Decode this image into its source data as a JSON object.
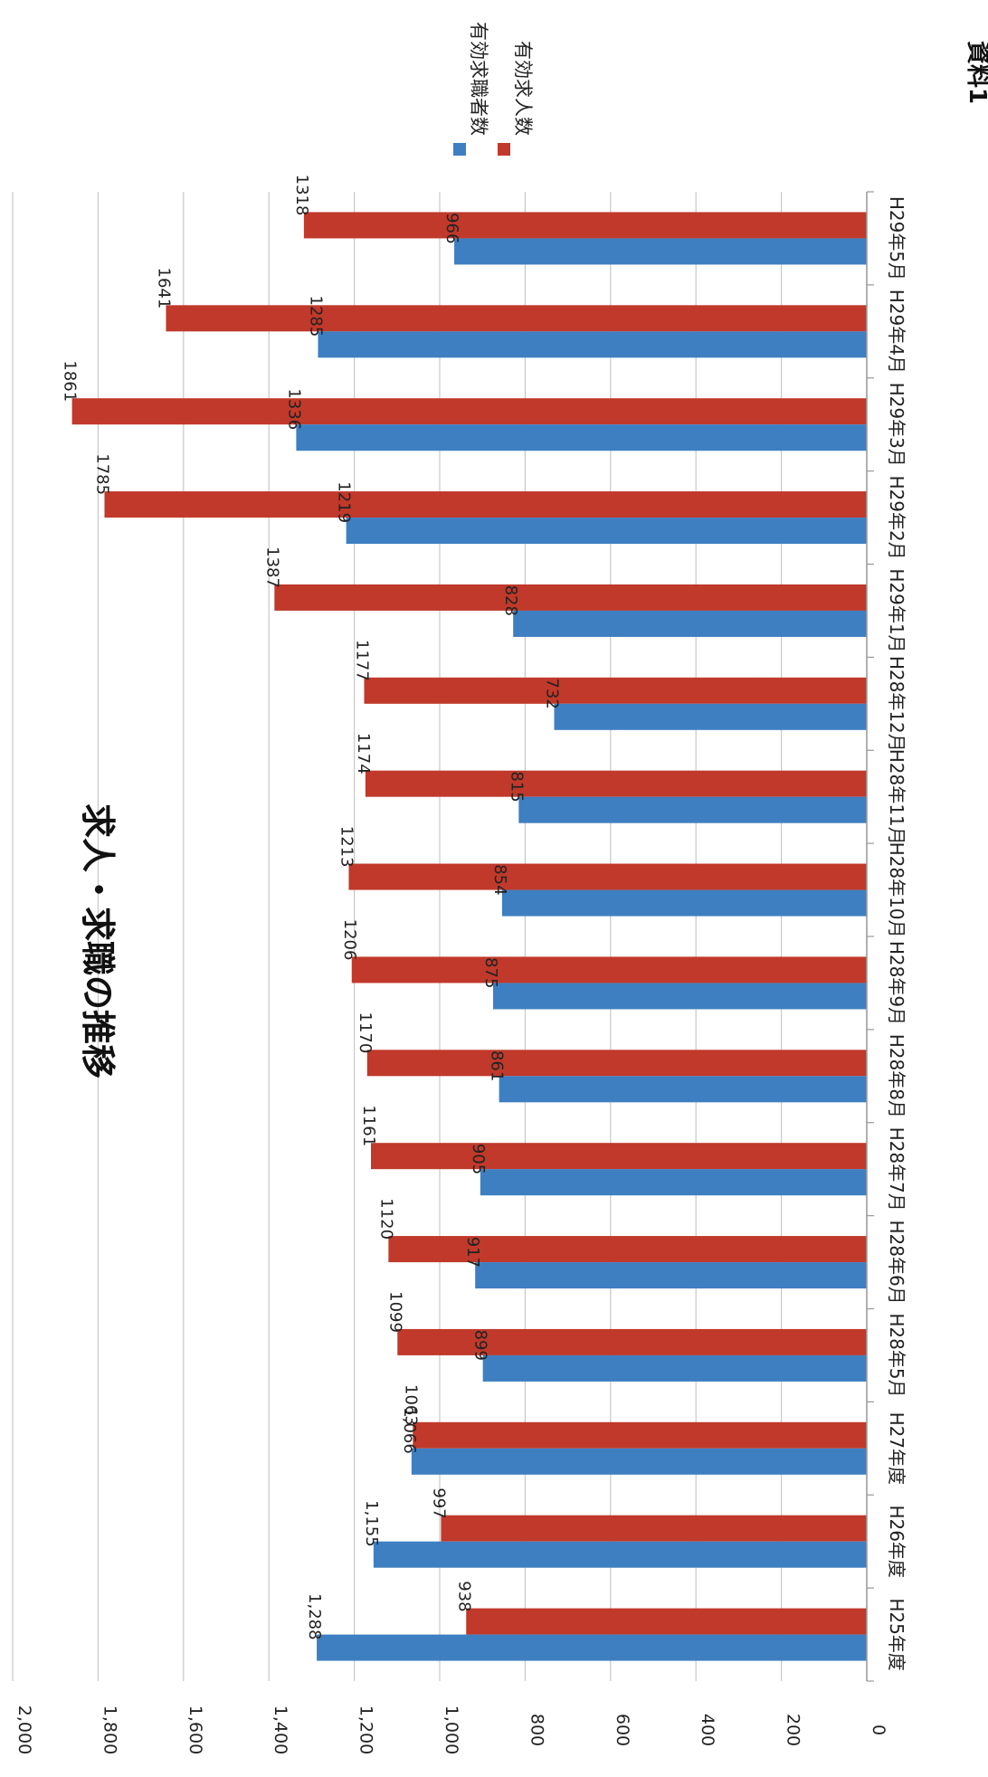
{
  "doc_label": "資料1",
  "chart_data": {
    "type": "bar",
    "title": "求人・求職の推移",
    "categories": [
      "H25年度",
      "H26年度",
      "H27年度",
      "H28年5月",
      "H28年6月",
      "H28年7月",
      "H28年8月",
      "H28年9月",
      "H28年10月",
      "H28年11月",
      "H28年12月",
      "H29年1月",
      "H29年2月",
      "H29年3月",
      "H29年4月",
      "H29年5月"
    ],
    "series": [
      {
        "name": "有効求職者数",
        "color": "#3e7fc1",
        "values": [
          1288,
          1155,
          1066,
          899,
          917,
          905,
          861,
          875,
          854,
          815,
          732,
          828,
          1219,
          1336,
          1285,
          966
        ],
        "labels": [
          "1,288",
          "1,155",
          "1,066",
          "899",
          "917",
          "905",
          "861",
          "875",
          "854",
          "815",
          "732",
          "828",
          "1219",
          "1336",
          "1285",
          "966"
        ]
      },
      {
        "name": "有効求人数",
        "color": "#c0392b",
        "values": [
          938,
          997,
          1063,
          1099,
          1120,
          1161,
          1170,
          1206,
          1213,
          1174,
          1177,
          1387,
          1785,
          1861,
          1641,
          1318
        ],
        "labels": [
          "938",
          "997",
          "1063",
          "1099",
          "1120",
          "1161",
          "1170",
          "1206",
          "1213",
          "1174",
          "1177",
          "1387",
          "1785",
          "1861",
          "1641",
          "1318"
        ]
      }
    ],
    "value_axis": {
      "min": 0,
      "max": 2000,
      "ticks": [
        0,
        200,
        400,
        600,
        800,
        1000,
        1200,
        1400,
        1600,
        1800,
        2000
      ],
      "tick_labels": [
        "0",
        "200",
        "400",
        "600",
        "800",
        "1,000",
        "1,200",
        "1,400",
        "1,600",
        "1,800",
        "2,000"
      ]
    },
    "grid": true,
    "legend_position": "top-right",
    "orientation": "rotated 90 degrees clockwise (vertical bars printed sideways)"
  }
}
